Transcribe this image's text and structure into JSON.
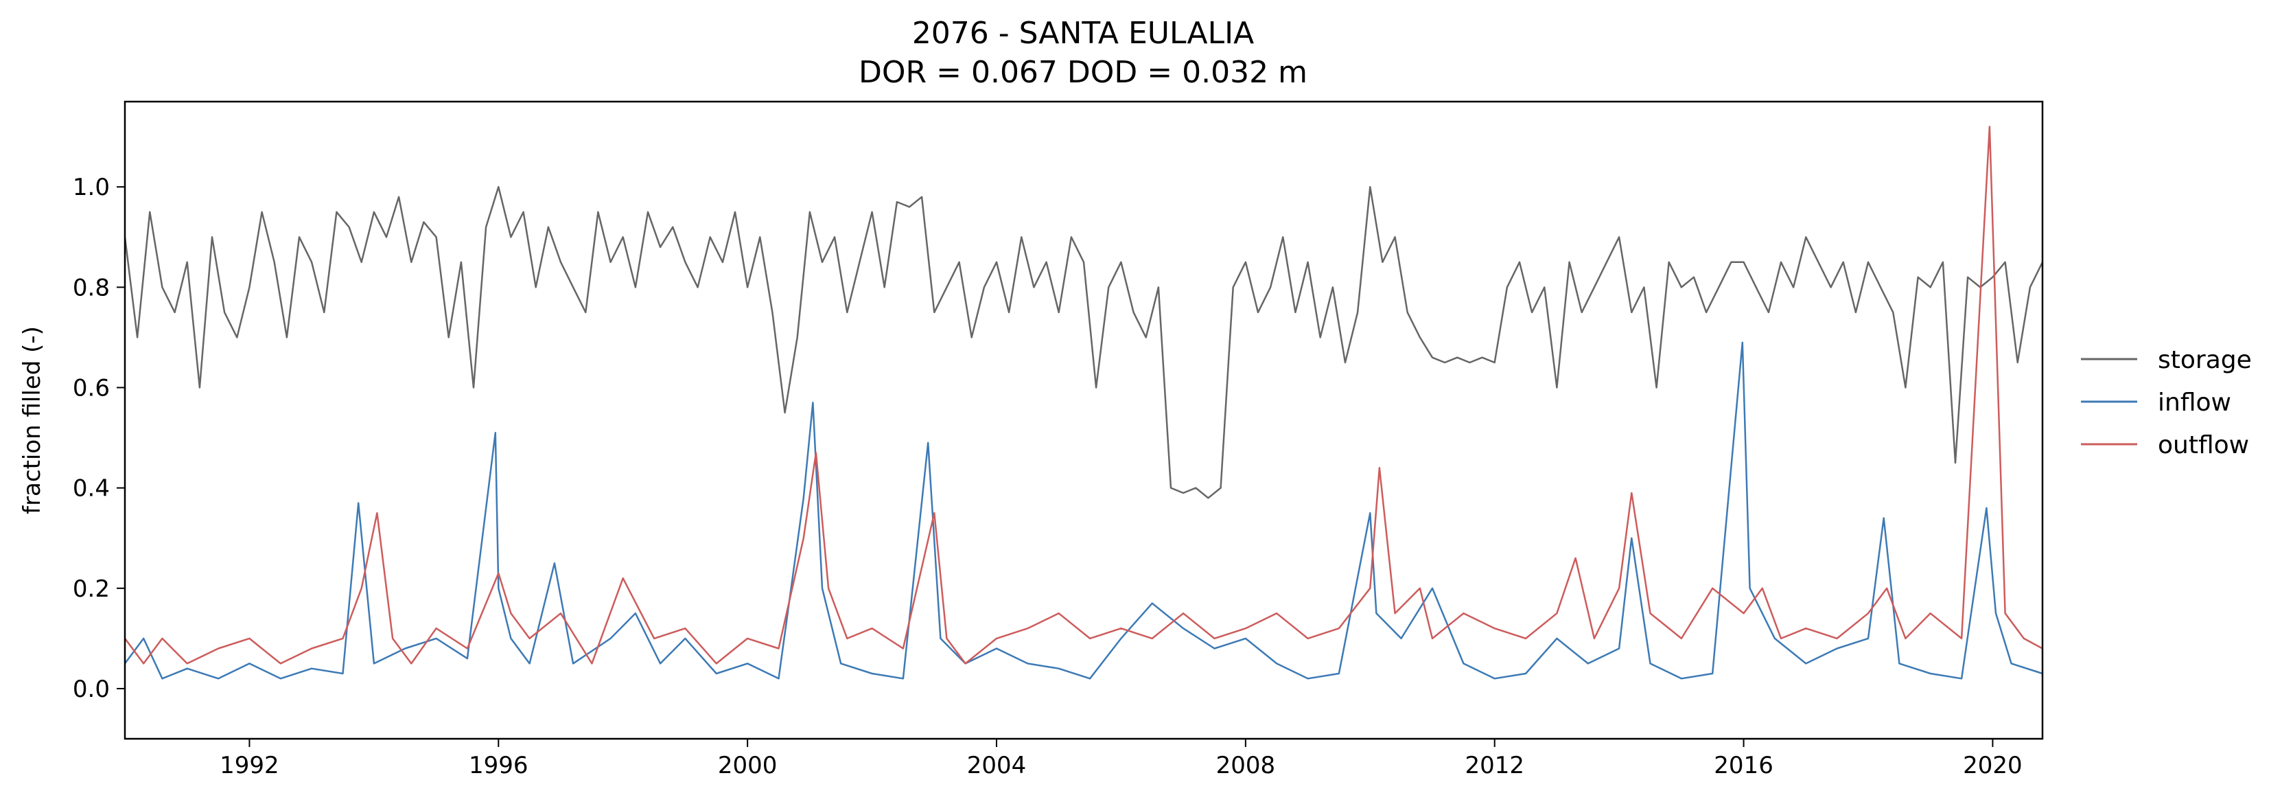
{
  "chart_data": {
    "type": "line",
    "title_line1": "2076 - SANTA EULALIA",
    "title_line2": "DOR = 0.067  DOD = 0.032 m",
    "xlabel": "",
    "ylabel": "fraction filled (-)",
    "xlim": [
      1990.0,
      2020.8
    ],
    "ylim": [
      -0.1,
      1.17
    ],
    "x_ticks": [
      1992,
      1996,
      2000,
      2004,
      2008,
      2012,
      2016,
      2020
    ],
    "x_tick_labels": [
      "1992",
      "1996",
      "2000",
      "2004",
      "2008",
      "2012",
      "2016",
      "2020"
    ],
    "y_ticks": [
      0.0,
      0.2,
      0.4,
      0.6,
      0.8,
      1.0
    ],
    "y_tick_labels": [
      "0.0",
      "0.2",
      "0.4",
      "0.6",
      "0.8",
      "1.0"
    ],
    "legend_position": "right-outside",
    "series": [
      {
        "name": "storage",
        "color": "#666666",
        "x": [
          1990.0,
          1990.2,
          1990.4,
          1990.6,
          1990.8,
          1991.0,
          1991.2,
          1991.4,
          1991.6,
          1991.8,
          1992.0,
          1992.2,
          1992.4,
          1992.6,
          1992.8,
          1993.0,
          1993.2,
          1993.4,
          1993.6,
          1993.8,
          1994.0,
          1994.2,
          1994.4,
          1994.6,
          1994.8,
          1995.0,
          1995.2,
          1995.4,
          1995.6,
          1995.8,
          1996.0,
          1996.2,
          1996.4,
          1996.6,
          1996.8,
          1997.0,
          1997.2,
          1997.4,
          1997.6,
          1997.8,
          1998.0,
          1998.2,
          1998.4,
          1998.6,
          1998.8,
          1999.0,
          1999.2,
          1999.4,
          1999.6,
          1999.8,
          2000.0,
          2000.2,
          2000.4,
          2000.6,
          2000.8,
          2001.0,
          2001.2,
          2001.4,
          2001.6,
          2001.8,
          2002.0,
          2002.2,
          2002.4,
          2002.6,
          2002.8,
          2003.0,
          2003.2,
          2003.4,
          2003.6,
          2003.8,
          2004.0,
          2004.2,
          2004.4,
          2004.6,
          2004.8,
          2005.0,
          2005.2,
          2005.4,
          2005.6,
          2005.8,
          2006.0,
          2006.2,
          2006.4,
          2006.6,
          2006.8,
          2007.0,
          2007.2,
          2007.4,
          2007.6,
          2007.8,
          2008.0,
          2008.2,
          2008.4,
          2008.6,
          2008.8,
          2009.0,
          2009.2,
          2009.4,
          2009.6,
          2009.8,
          2010.0,
          2010.2,
          2010.4,
          2010.6,
          2010.8,
          2011.0,
          2011.2,
          2011.4,
          2011.6,
          2011.8,
          2012.0,
          2012.2,
          2012.4,
          2012.6,
          2012.8,
          2013.0,
          2013.2,
          2013.4,
          2013.6,
          2013.8,
          2014.0,
          2014.2,
          2014.4,
          2014.6,
          2014.8,
          2015.0,
          2015.2,
          2015.4,
          2015.6,
          2015.8,
          2016.0,
          2016.2,
          2016.4,
          2016.6,
          2016.8,
          2017.0,
          2017.2,
          2017.4,
          2017.6,
          2017.8,
          2018.0,
          2018.2,
          2018.4,
          2018.6,
          2018.8,
          2019.0,
          2019.2,
          2019.4,
          2019.6,
          2019.8,
          2020.0,
          2020.2,
          2020.4,
          2020.6,
          2020.8
        ],
        "y": [
          0.9,
          0.7,
          0.95,
          0.8,
          0.75,
          0.85,
          0.6,
          0.9,
          0.75,
          0.7,
          0.8,
          0.95,
          0.85,
          0.7,
          0.9,
          0.85,
          0.75,
          0.95,
          0.92,
          0.85,
          0.95,
          0.9,
          0.98,
          0.85,
          0.93,
          0.9,
          0.7,
          0.85,
          0.6,
          0.92,
          1.0,
          0.9,
          0.95,
          0.8,
          0.92,
          0.85,
          0.8,
          0.75,
          0.95,
          0.85,
          0.9,
          0.8,
          0.95,
          0.88,
          0.92,
          0.85,
          0.8,
          0.9,
          0.85,
          0.95,
          0.8,
          0.9,
          0.75,
          0.55,
          0.7,
          0.95,
          0.85,
          0.9,
          0.75,
          0.85,
          0.95,
          0.8,
          0.97,
          0.96,
          0.98,
          0.75,
          0.8,
          0.85,
          0.7,
          0.8,
          0.85,
          0.75,
          0.9,
          0.8,
          0.85,
          0.75,
          0.9,
          0.85,
          0.6,
          0.8,
          0.85,
          0.75,
          0.7,
          0.8,
          0.4,
          0.39,
          0.4,
          0.38,
          0.4,
          0.8,
          0.85,
          0.75,
          0.8,
          0.9,
          0.75,
          0.85,
          0.7,
          0.8,
          0.65,
          0.75,
          1.0,
          0.85,
          0.9,
          0.75,
          0.7,
          0.66,
          0.65,
          0.66,
          0.65,
          0.66,
          0.65,
          0.8,
          0.85,
          0.75,
          0.8,
          0.6,
          0.85,
          0.75,
          0.8,
          0.85,
          0.9,
          0.75,
          0.8,
          0.6,
          0.85,
          0.8,
          0.82,
          0.75,
          0.8,
          0.85,
          0.85,
          0.8,
          0.75,
          0.85,
          0.8,
          0.9,
          0.85,
          0.8,
          0.85,
          0.75,
          0.85,
          0.8,
          0.75,
          0.6,
          0.82,
          0.8,
          0.85,
          0.45,
          0.82,
          0.8,
          0.82,
          0.85,
          0.65,
          0.8,
          0.85
        ]
      },
      {
        "name": "inflow",
        "color": "#3d7ab5",
        "x": [
          1990.0,
          1990.3,
          1990.6,
          1991.0,
          1991.5,
          1992.0,
          1992.5,
          1993.0,
          1993.5,
          1993.75,
          1994.0,
          1994.5,
          1995.0,
          1995.5,
          1995.95,
          1996.0,
          1996.2,
          1996.5,
          1996.9,
          1997.2,
          1997.8,
          1998.2,
          1998.6,
          1999.0,
          1999.5,
          2000.0,
          2000.5,
          2000.9,
          2001.05,
          2001.2,
          2001.5,
          2002.0,
          2002.5,
          2002.9,
          2003.1,
          2003.5,
          2004.0,
          2004.5,
          2005.0,
          2005.5,
          2006.0,
          2006.5,
          2007.0,
          2007.5,
          2008.0,
          2008.5,
          2009.0,
          2009.5,
          2010.0,
          2010.1,
          2010.5,
          2011.0,
          2011.5,
          2012.0,
          2012.5,
          2013.0,
          2013.5,
          2014.0,
          2014.2,
          2014.5,
          2015.0,
          2015.5,
          2015.98,
          2016.1,
          2016.5,
          2017.0,
          2017.5,
          2018.0,
          2018.25,
          2018.5,
          2019.0,
          2019.5,
          2019.9,
          2020.05,
          2020.3,
          2020.8
        ],
        "y": [
          0.05,
          0.1,
          0.02,
          0.04,
          0.02,
          0.05,
          0.02,
          0.04,
          0.03,
          0.37,
          0.05,
          0.08,
          0.1,
          0.06,
          0.51,
          0.2,
          0.1,
          0.05,
          0.25,
          0.05,
          0.1,
          0.15,
          0.05,
          0.1,
          0.03,
          0.05,
          0.02,
          0.38,
          0.57,
          0.2,
          0.05,
          0.03,
          0.02,
          0.49,
          0.1,
          0.05,
          0.08,
          0.05,
          0.04,
          0.02,
          0.1,
          0.17,
          0.12,
          0.08,
          0.1,
          0.05,
          0.02,
          0.03,
          0.35,
          0.15,
          0.1,
          0.2,
          0.05,
          0.02,
          0.03,
          0.1,
          0.05,
          0.08,
          0.3,
          0.05,
          0.02,
          0.03,
          0.69,
          0.2,
          0.1,
          0.05,
          0.08,
          0.1,
          0.34,
          0.05,
          0.03,
          0.02,
          0.36,
          0.15,
          0.05,
          0.03
        ]
      },
      {
        "name": "outflow",
        "color": "#cd5c5c",
        "x": [
          1990.0,
          1990.3,
          1990.6,
          1991.0,
          1991.5,
          1992.0,
          1992.5,
          1993.0,
          1993.5,
          1993.8,
          1994.05,
          1994.3,
          1994.6,
          1995.0,
          1995.5,
          1996.0,
          1996.2,
          1996.5,
          1997.0,
          1997.5,
          1998.0,
          1998.5,
          1999.0,
          1999.5,
          2000.0,
          2000.5,
          2000.9,
          2001.1,
          2001.3,
          2001.6,
          2002.0,
          2002.5,
          2003.0,
          2003.2,
          2003.5,
          2004.0,
          2004.5,
          2005.0,
          2005.5,
          2006.0,
          2006.5,
          2007.0,
          2007.5,
          2008.0,
          2008.5,
          2009.0,
          2009.5,
          2010.0,
          2010.15,
          2010.4,
          2010.8,
          2011.0,
          2011.5,
          2012.0,
          2012.5,
          2013.0,
          2013.3,
          2013.6,
          2014.0,
          2014.2,
          2014.5,
          2015.0,
          2015.5,
          2016.0,
          2016.3,
          2016.6,
          2017.0,
          2017.5,
          2018.0,
          2018.3,
          2018.6,
          2019.0,
          2019.5,
          2019.95,
          2020.2,
          2020.5,
          2020.8
        ],
        "y": [
          0.1,
          0.05,
          0.1,
          0.05,
          0.08,
          0.1,
          0.05,
          0.08,
          0.1,
          0.2,
          0.35,
          0.1,
          0.05,
          0.12,
          0.08,
          0.23,
          0.15,
          0.1,
          0.15,
          0.05,
          0.22,
          0.1,
          0.12,
          0.05,
          0.1,
          0.08,
          0.3,
          0.47,
          0.2,
          0.1,
          0.12,
          0.08,
          0.35,
          0.1,
          0.05,
          0.1,
          0.12,
          0.15,
          0.1,
          0.12,
          0.1,
          0.15,
          0.1,
          0.12,
          0.15,
          0.1,
          0.12,
          0.2,
          0.44,
          0.15,
          0.2,
          0.1,
          0.15,
          0.12,
          0.1,
          0.15,
          0.26,
          0.1,
          0.2,
          0.39,
          0.15,
          0.1,
          0.2,
          0.15,
          0.2,
          0.1,
          0.12,
          0.1,
          0.15,
          0.2,
          0.1,
          0.15,
          0.1,
          1.12,
          0.15,
          0.1,
          0.08
        ]
      }
    ]
  }
}
